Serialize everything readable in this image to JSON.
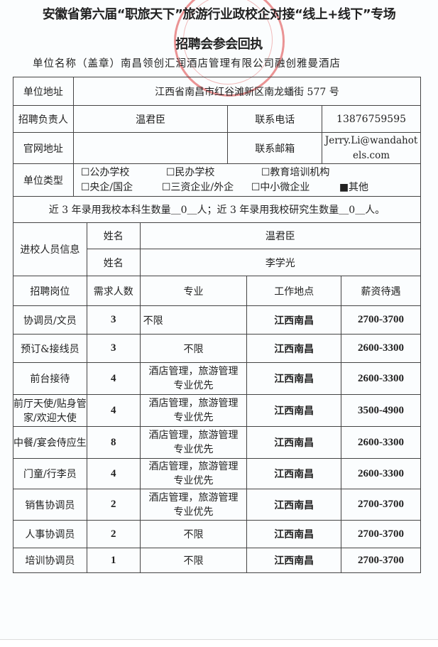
{
  "title_line1": "安徽省第六届“职旅天下”旅游行业政校企对接“线上+线下”专场",
  "title_line2": "招聘会参会回执",
  "unit_name": "单位名称（盖章）南昌领创汇润酒店管理有限公司融创雅曼酒店",
  "info": {
    "address_label": "单位地址",
    "address": "江西省南昌市红谷滩新区南龙蟠街 577 号",
    "contact_label": "招聘负责人",
    "contact": "温君臣",
    "phone_label": "联系电话",
    "phone": "13876759595",
    "website_label": "官网地址",
    "website": "",
    "email_label": "联系邮箱",
    "email": "Jerry.Li@wandahotels.com",
    "type_label": "单位类型",
    "types": [
      "☐公办学校",
      "☐民办学校",
      "☐教育培训机构",
      "☐央企/国企",
      "☐三资企业/外企",
      "☐中小微企业",
      "■其他"
    ],
    "count_line": "近 3 年录用我校本科生数量＿0＿人；近 3 年录用我校研究生数量＿0＿人。"
  },
  "visitors": {
    "label": "进校人员信息",
    "rows": [
      {
        "k": "姓名",
        "v": "温君臣"
      },
      {
        "k": "姓名",
        "v": "李学光"
      }
    ]
  },
  "headers": [
    "招聘岗位",
    "需求人数",
    "专业",
    "工作地点",
    "薪资待遇"
  ],
  "jobs": [
    [
      "协调员/文员",
      "3",
      "不限",
      "江西南昌",
      "2700-3700"
    ],
    [
      "预订&接线员",
      "3",
      "不限",
      "江西南昌",
      "2600-3300"
    ],
    [
      "前台接待",
      "4",
      "酒店管理，旅游管理专业优先",
      "江西南昌",
      "2600-3300"
    ],
    [
      "前厅天使/贴身管家/欢迎大使",
      "4",
      "酒店管理，旅游管理专业优先",
      "江西南昌",
      "3500-4900"
    ],
    [
      "中餐/宴会侍应生",
      "8",
      "酒店管理，旅游管理专业优先",
      "江西南昌",
      "2600-3300"
    ],
    [
      "门童/行李员",
      "4",
      "酒店管理，旅游管理专业优先",
      "江西南昌",
      "2600-3300"
    ],
    [
      "销售协调员",
      "2",
      "酒店管理，旅游管理专业优先",
      "江西南昌",
      "2700-3700"
    ],
    [
      "人事协调员",
      "2",
      "不限",
      "江西南昌",
      "2700-3700"
    ],
    [
      "培训协调员",
      "1",
      "不限",
      "江西南昌",
      "2700-3700"
    ]
  ],
  "stamp_color": "#dc3c3c"
}
